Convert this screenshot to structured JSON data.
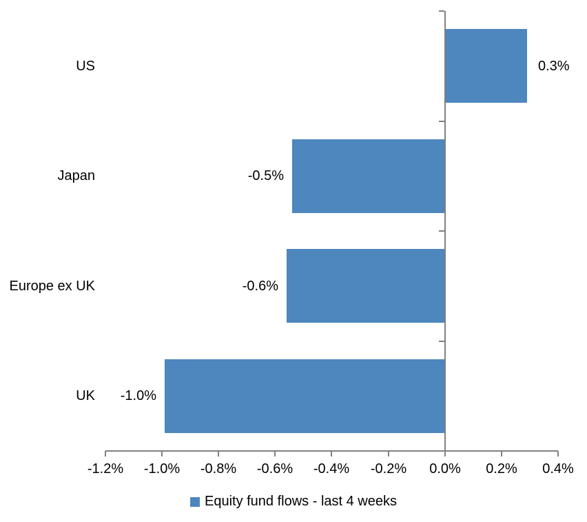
{
  "chart_data": {
    "type": "bar",
    "orientation": "horizontal",
    "title": "",
    "categories": [
      "US",
      "Japan",
      "Europe ex UK",
      "UK"
    ],
    "values": [
      0.3,
      -0.5,
      -0.6,
      -1.0
    ],
    "value_labels": [
      "0.3%",
      "-0.5%",
      "-0.6%",
      "-1.0%"
    ],
    "bar_values_precise": [
      0.29,
      -0.54,
      -0.56,
      -0.99
    ],
    "series_name": "Equity fund flows - last 4 weeks",
    "xlim": [
      -1.2,
      0.4
    ],
    "x_ticks": [
      -1.2,
      -1.0,
      -0.8,
      -0.6,
      -0.4,
      -0.2,
      0.0,
      0.2,
      0.4
    ],
    "x_tick_labels": [
      "-1.2%",
      "-1.0%",
      "-0.8%",
      "-0.6%",
      "-0.4%",
      "-0.2%",
      "0.0%",
      "0.2%",
      "0.4%"
    ],
    "legend_position": "bottom",
    "grid": false,
    "colors": {
      "bar": "#4E86BE",
      "axis": "#808080",
      "text": "#000000",
      "background": "#FFFFFF"
    }
  },
  "legend": {
    "label": "Equity fund flows - last 4 weeks",
    "swatch_color": "#4E86BE"
  }
}
